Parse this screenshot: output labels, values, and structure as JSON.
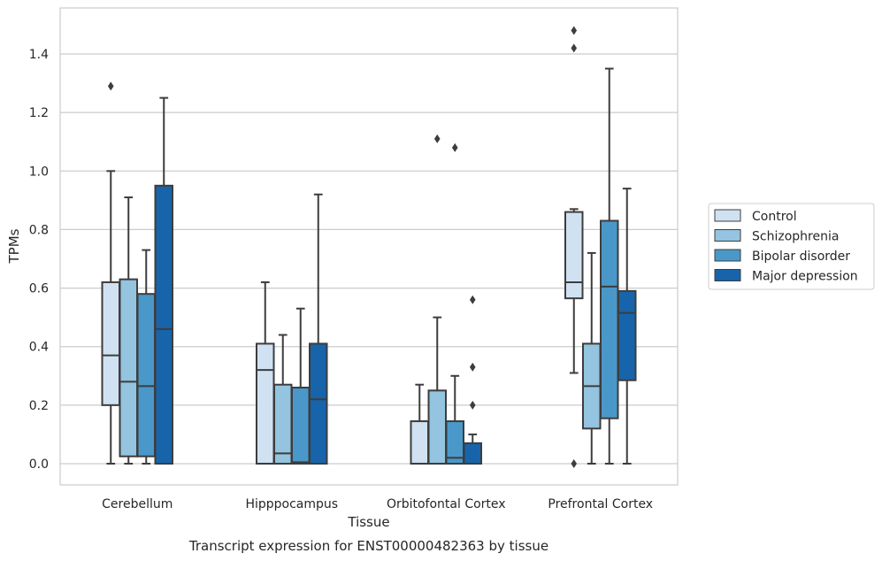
{
  "chart_data": {
    "type": "box",
    "title": "",
    "caption": "Transcript expression for ENST00000482363 by tissue",
    "xlabel": "Tissue",
    "ylabel": "TPMs",
    "ylim": [
      -0.07,
      1.56
    ],
    "yticks": [
      0.0,
      0.2,
      0.4,
      0.6,
      0.8,
      1.0,
      1.2,
      1.4
    ],
    "ytick_labels": [
      "0.0",
      "0.2",
      "0.4",
      "0.6",
      "0.8",
      "1.0",
      "1.2",
      "1.4"
    ],
    "grid": "horizontal",
    "legend_position": "right",
    "categories": [
      "Cerebellum",
      "Hipppocampus",
      "Orbitofontal Cortex",
      "Prefrontal Cortex"
    ],
    "series": [
      {
        "name": "Control",
        "color": "#d0e1f2",
        "boxes": [
          {
            "q1": 0.2,
            "median": 0.37,
            "q3": 0.62,
            "whisker_low": 0.0,
            "whisker_high": 1.0,
            "outliers": [
              1.29
            ]
          },
          {
            "q1": 0.0,
            "median": 0.32,
            "q3": 0.41,
            "whisker_low": 0.0,
            "whisker_high": 0.62,
            "outliers": []
          },
          {
            "q1": 0.0,
            "median": 0.0,
            "q3": 0.145,
            "whisker_low": 0.0,
            "whisker_high": 0.27,
            "outliers": []
          },
          {
            "q1": 0.565,
            "median": 0.62,
            "q3": 0.86,
            "whisker_low": 0.31,
            "whisker_high": 0.87,
            "outliers": [
              1.42,
              1.48,
              0.0
            ]
          }
        ]
      },
      {
        "name": "Schizophrenia",
        "color": "#94c4df",
        "boxes": [
          {
            "q1": 0.025,
            "median": 0.28,
            "q3": 0.63,
            "whisker_low": 0.0,
            "whisker_high": 0.91,
            "outliers": []
          },
          {
            "q1": 0.0,
            "median": 0.035,
            "q3": 0.27,
            "whisker_low": 0.0,
            "whisker_high": 0.44,
            "outliers": []
          },
          {
            "q1": 0.0,
            "median": 0.0,
            "q3": 0.25,
            "whisker_low": 0.0,
            "whisker_high": 0.5,
            "outliers": [
              1.11
            ]
          },
          {
            "q1": 0.12,
            "median": 0.265,
            "q3": 0.41,
            "whisker_low": 0.0,
            "whisker_high": 0.72,
            "outliers": []
          }
        ]
      },
      {
        "name": "Bipolar disorder",
        "color": "#4a98c9",
        "boxes": [
          {
            "q1": 0.025,
            "median": 0.265,
            "q3": 0.58,
            "whisker_low": 0.0,
            "whisker_high": 0.73,
            "outliers": []
          },
          {
            "q1": 0.0,
            "median": 0.005,
            "q3": 0.26,
            "whisker_low": 0.0,
            "whisker_high": 0.53,
            "outliers": []
          },
          {
            "q1": 0.0,
            "median": 0.02,
            "q3": 0.145,
            "whisker_low": 0.0,
            "whisker_high": 0.3,
            "outliers": [
              1.08
            ]
          },
          {
            "q1": 0.155,
            "median": 0.605,
            "q3": 0.83,
            "whisker_low": 0.0,
            "whisker_high": 1.35,
            "outliers": []
          }
        ]
      },
      {
        "name": "Major depression",
        "color": "#1764ab",
        "boxes": [
          {
            "q1": 0.0,
            "median": 0.46,
            "q3": 0.95,
            "whisker_low": 0.0,
            "whisker_high": 1.25,
            "outliers": []
          },
          {
            "q1": 0.0,
            "median": 0.22,
            "q3": 0.41,
            "whisker_low": 0.0,
            "whisker_high": 0.92,
            "outliers": []
          },
          {
            "q1": 0.0,
            "median": 0.0,
            "q3": 0.07,
            "whisker_low": 0.0,
            "whisker_high": 0.1,
            "outliers": [
              0.2,
              0.33,
              0.56
            ]
          },
          {
            "q1": 0.285,
            "median": 0.515,
            "q3": 0.59,
            "whisker_low": 0.0,
            "whisker_high": 0.94,
            "outliers": []
          }
        ]
      }
    ]
  }
}
